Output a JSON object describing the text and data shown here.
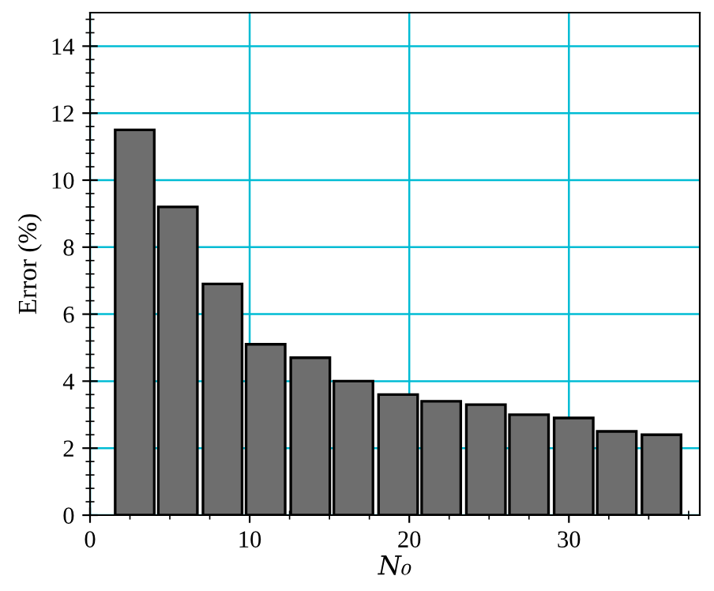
{
  "chart_data": {
    "type": "bar",
    "xlabel": "N₀",
    "ylabel": "Error (%)",
    "x": [
      2.8,
      5.5,
      8.3,
      11.0,
      13.8,
      16.5,
      19.3,
      22.0,
      24.8,
      27.5,
      30.3,
      33.0,
      35.8
    ],
    "values": [
      11.5,
      9.2,
      6.9,
      5.1,
      4.7,
      4.0,
      3.6,
      3.4,
      3.3,
      3.0,
      2.9,
      2.5,
      2.4
    ],
    "color": "#6e6e6e",
    "xlim": [
      0,
      38.2
    ],
    "xticks": [
      0,
      10,
      20,
      30
    ],
    "ylim": [
      0,
      15
    ],
    "yticks": [
      0,
      2,
      4,
      6,
      8,
      10,
      12,
      14
    ],
    "grid": true
  }
}
